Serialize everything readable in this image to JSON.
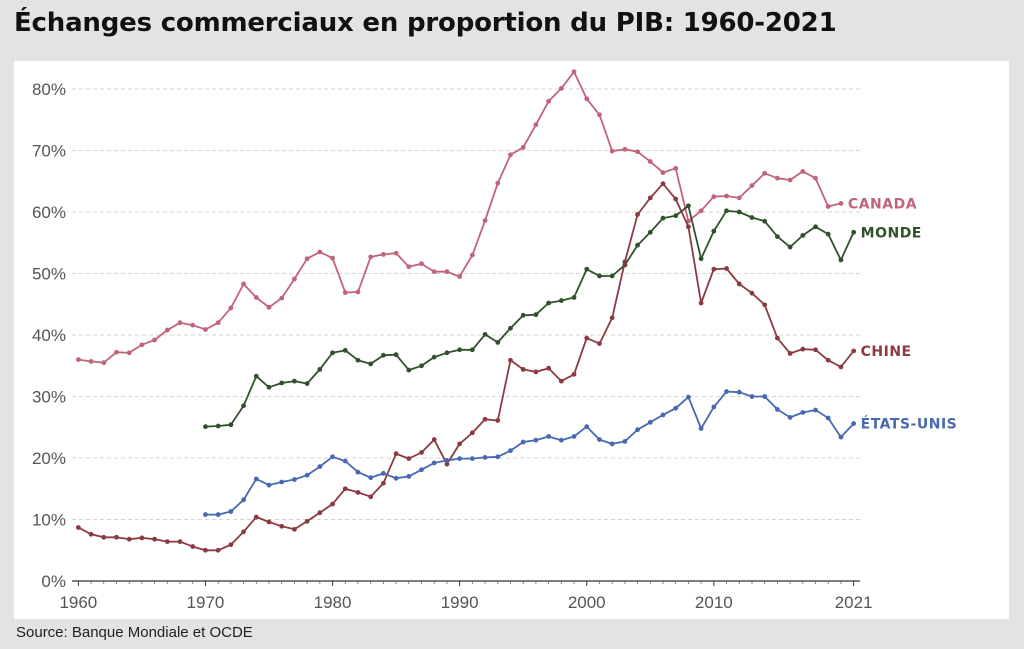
{
  "title": "Échanges commerciaux en proportion du PIB: 1960-2021",
  "source": "Source: Banque Mondiale et OCDE",
  "chart_data": {
    "type": "line",
    "title": "Échanges commerciaux en proportion du PIB: 1960-2021",
    "xlabel": "",
    "ylabel": "",
    "xlim": [
      1959.5,
      2021.5
    ],
    "ylim": [
      0,
      80
    ],
    "y_ticks": [
      0,
      10,
      20,
      30,
      40,
      50,
      60,
      70,
      80
    ],
    "y_tick_labels": [
      "0%",
      "10%",
      "20%",
      "30%",
      "40%",
      "50%",
      "60%",
      "70%",
      "80%"
    ],
    "x_ticks": [
      1960,
      1970,
      1980,
      1990,
      2000,
      2010,
      2021
    ],
    "x_tick_labels": [
      "1960",
      "1970",
      "1980",
      "1990",
      "2000",
      "2010",
      "2021"
    ],
    "grid": "horizontal dashed",
    "series": [
      {
        "name": "CANADA",
        "color": "#c26479",
        "start_year": 1960,
        "values": [
          36.0,
          35.7,
          35.5,
          37.2,
          37.1,
          38.4,
          39.2,
          40.8,
          42.0,
          41.6,
          40.9,
          42.0,
          44.4,
          48.3,
          46.1,
          44.5,
          46.0,
          49.1,
          52.4,
          53.5,
          52.5,
          46.9,
          47.0,
          52.7,
          53.1,
          53.3,
          51.1,
          51.6,
          50.3,
          50.3,
          49.5,
          53.0,
          58.6,
          64.7,
          69.3,
          70.5,
          74.2,
          78.0,
          80.1,
          82.8,
          78.4,
          75.8,
          69.9,
          70.2,
          69.8,
          68.2,
          66.4,
          67.1,
          58.5,
          60.2,
          62.5,
          62.6,
          62.3,
          64.3,
          66.3,
          65.5,
          65.2,
          66.6,
          65.5,
          60.9,
          61.4
        ]
      },
      {
        "name": "MONDE",
        "color": "#30522a",
        "start_year": 1970,
        "values": [
          25.1,
          25.2,
          25.4,
          28.5,
          33.3,
          31.5,
          32.2,
          32.5,
          32.1,
          34.4,
          37.1,
          37.5,
          35.9,
          35.3,
          36.7,
          36.8,
          34.3,
          35.0,
          36.4,
          37.1,
          37.6,
          37.6,
          40.1,
          38.8,
          41.1,
          43.2,
          43.3,
          45.2,
          45.6,
          46.1,
          50.7,
          49.6,
          49.6,
          51.4,
          54.6,
          56.7,
          59.0,
          59.4,
          61.0,
          52.4,
          56.9,
          60.2,
          60.0,
          59.1,
          58.5,
          56.0,
          54.3,
          56.2,
          57.6,
          56.4,
          52.2,
          56.7
        ]
      },
      {
        "name": "CHINE",
        "color": "#8c3a41",
        "start_year": 1960,
        "values": [
          8.7,
          7.6,
          7.1,
          7.1,
          6.8,
          7.0,
          6.8,
          6.4,
          6.4,
          5.6,
          5.0,
          5.0,
          5.9,
          8.0,
          10.4,
          9.6,
          8.9,
          8.4,
          9.7,
          11.1,
          12.5,
          15.0,
          14.4,
          13.7,
          15.9,
          20.7,
          19.9,
          20.9,
          23.0,
          19.0,
          22.3,
          24.1,
          26.3,
          26.1,
          35.9,
          34.4,
          34.0,
          34.6,
          32.5,
          33.6,
          39.5,
          38.6,
          42.8,
          51.9,
          59.6,
          62.3,
          64.6,
          62.1,
          57.6,
          45.2,
          50.7,
          50.8,
          48.3,
          46.8,
          44.9,
          39.5,
          37.0,
          37.7,
          37.6,
          35.9,
          34.8,
          37.4
        ]
      },
      {
        "name": "ÉTATS-UNIS",
        "color": "#4869b0",
        "start_year": 1970,
        "values": [
          10.8,
          10.8,
          11.3,
          13.2,
          16.6,
          15.6,
          16.1,
          16.5,
          17.2,
          18.6,
          20.2,
          19.5,
          17.7,
          16.8,
          17.5,
          16.7,
          17.0,
          18.1,
          19.2,
          19.6,
          19.9,
          19.9,
          20.1,
          20.2,
          21.2,
          22.6,
          22.9,
          23.5,
          22.9,
          23.5,
          25.1,
          23.0,
          22.3,
          22.7,
          24.6,
          25.8,
          27.0,
          28.1,
          29.9,
          24.8,
          28.3,
          30.8,
          30.7,
          30.0,
          30.0,
          27.9,
          26.6,
          27.4,
          27.8,
          26.5,
          23.4,
          25.6
        ]
      }
    ]
  }
}
